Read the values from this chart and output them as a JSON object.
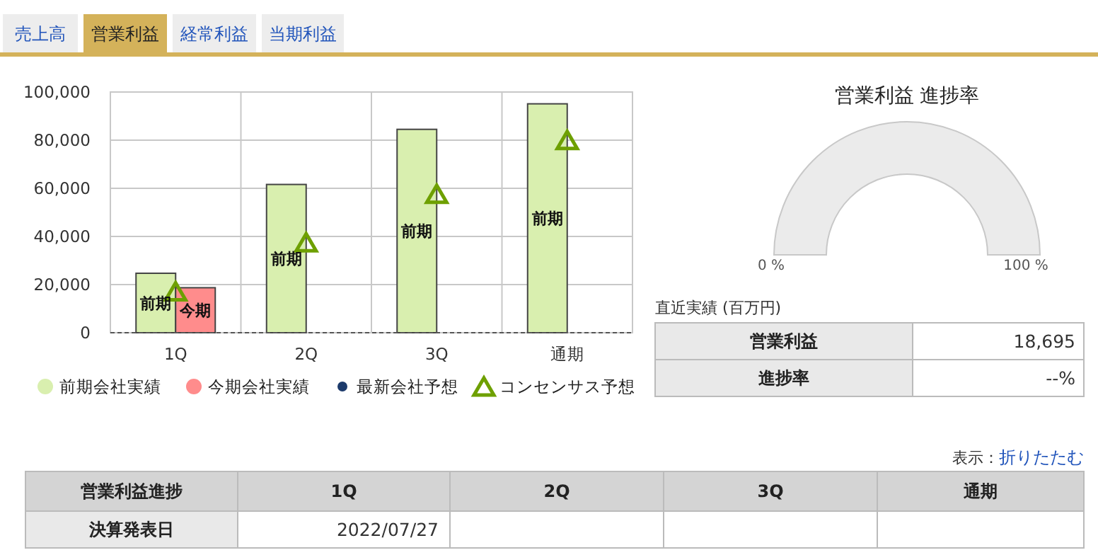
{
  "chart_data": [
    {
      "type": "bar",
      "categories": [
        "1Q",
        "2Q",
        "3Q",
        "通期"
      ],
      "series": [
        {
          "name": "前期会社実績",
          "color": "#d9efaf",
          "values": [
            24700,
            61600,
            84500,
            95100
          ]
        },
        {
          "name": "今期会社実績",
          "color": "#ff8c8c",
          "values": [
            18695,
            null,
            null,
            null
          ]
        },
        {
          "name": "最新会社予想",
          "type": "scatter",
          "marker": "circle",
          "color": "#1c3a6b",
          "values": [
            null,
            null,
            null,
            null
          ]
        },
        {
          "name": "コンセンサス予想",
          "type": "scatter",
          "marker": "triangle",
          "color": "#6ea000",
          "values": [
            16600,
            37000,
            57100,
            79500
          ]
        }
      ],
      "ylim": [
        0,
        100000
      ],
      "yticks": [
        0,
        {
          "value": 20000,
          "label": "20,000"
        },
        {
          "value": 40000,
          "label": "40,000"
        },
        {
          "value": 60000,
          "label": "60,000"
        },
        {
          "value": 80000,
          "label": "80,000"
        },
        {
          "value": 100000,
          "label": "100,000"
        }
      ],
      "grid": true,
      "legend": "bottom",
      "annotations": [
        {
          "text": "前期",
          "x": "1Q",
          "y": 12300
        },
        {
          "text": "今期",
          "x": "1Q",
          "y": 9300
        },
        {
          "text": "前期",
          "x": "2Q",
          "y": 30800
        },
        {
          "text": "前期",
          "x": "3Q",
          "y": 42200
        },
        {
          "text": "前期",
          "x": "通期",
          "y": 47500
        }
      ]
    },
    {
      "type": "other",
      "title": "営業利益 進捗率",
      "annotations": [
        "0 %",
        "100 %"
      ]
    },
    {
      "type": "other",
      "annotations": [
        "売上高",
        "営業利益",
        "経常利益",
        "当期利益"
      ]
    },
    {
      "type": "other",
      "title": "直近実績 (百万円)",
      "annotations": [
        "営業利益",
        "18,695",
        "進捗率",
        "--%"
      ]
    },
    {
      "type": "other",
      "annotations": [
        "表示：",
        "折りたたむ",
        "営業利益進捗",
        "1Q",
        "2Q",
        "3Q",
        "通期",
        "決算発表日",
        "2022/07/27"
      ]
    }
  ]
}
